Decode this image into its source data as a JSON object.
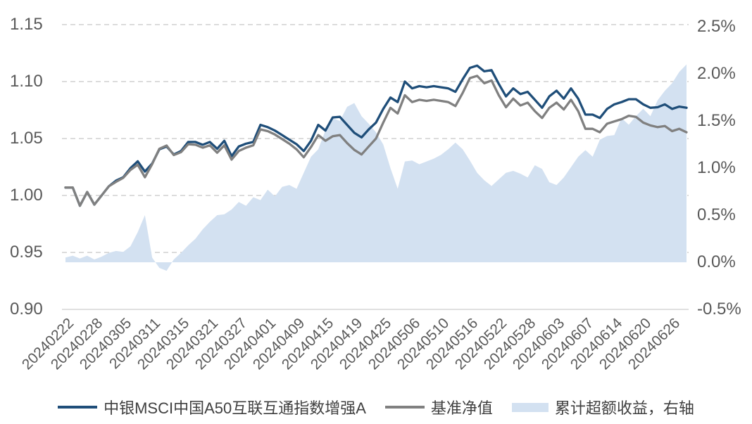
{
  "style": {
    "background": "#ffffff",
    "grid_color": "#c6c6c6",
    "axis_line_color": "#d6d6d6",
    "axis_text_color": "#595959",
    "legend_text_color": "#404040"
  },
  "chart_data": {
    "type": "combo-line-area",
    "title": "",
    "grid": "dashed-horizontal",
    "legend_position": "bottom",
    "x_tick_every": 4,
    "x_tick_labels": [
      "20240222",
      "20240228",
      "20240305",
      "20240311",
      "20240315",
      "20240321",
      "20240327",
      "20240401",
      "20240409",
      "20240415",
      "20240419",
      "20240425",
      "20240506",
      "20240510",
      "20240516",
      "20240522",
      "20240528",
      "20240603",
      "20240607",
      "20240614",
      "20240620",
      "20240626"
    ],
    "left_axis": {
      "min": 0.9,
      "max": 1.15,
      "values": [
        1.15,
        1.1,
        1.05,
        1.0,
        0.95,
        0.9
      ],
      "labels": [
        "1.15",
        "1.10",
        "1.05",
        "1.00",
        "0.95",
        "0.90"
      ]
    },
    "right_axis": {
      "min": -0.5,
      "max": 2.5,
      "values": [
        2.5,
        2.0,
        1.5,
        1.0,
        0.5,
        0.0,
        -0.5
      ],
      "labels": [
        "2.5%",
        "2.0%",
        "1.5%",
        "1.0%",
        "0.5%",
        "0.0%",
        "-0.5%"
      ]
    },
    "series": [
      {
        "name": "中银MSCI中国A50互联互通指数增强A",
        "type": "line",
        "axis": "left",
        "color": "#1f4e79",
        "values": [
          1.007,
          1.007,
          0.991,
          1.003,
          0.992,
          1.0,
          1.008,
          1.013,
          1.016,
          1.024,
          1.03,
          1.021,
          1.028,
          1.0405,
          1.043,
          1.036,
          1.039,
          1.047,
          1.047,
          1.0445,
          1.047,
          1.041,
          1.048,
          1.0345,
          1.043,
          1.0455,
          1.047,
          1.062,
          1.06,
          1.057,
          1.053,
          1.049,
          1.045,
          1.039,
          1.048,
          1.062,
          1.057,
          1.0685,
          1.069,
          1.062,
          1.055,
          1.051,
          1.058,
          1.064,
          1.076,
          1.086,
          1.082,
          1.1,
          1.094,
          1.096,
          1.095,
          1.096,
          1.095,
          1.094,
          1.091,
          1.102,
          1.112,
          1.114,
          1.109,
          1.11,
          1.098,
          1.087,
          1.094,
          1.089,
          1.091,
          1.084,
          1.077,
          1.087,
          1.092,
          1.085,
          1.094,
          1.085,
          1.071,
          1.071,
          1.068,
          1.076,
          1.08,
          1.082,
          1.0845,
          1.0845,
          1.08,
          1.077,
          1.0775,
          1.08,
          1.076,
          1.078,
          1.077
        ]
      },
      {
        "name": "基准净值",
        "type": "line",
        "axis": "left",
        "color": "#808080",
        "values": [
          1.007,
          1.007,
          0.991,
          1.003,
          0.992,
          1.0,
          1.008,
          1.012,
          1.0155,
          1.0225,
          1.027,
          1.016,
          1.0275,
          1.041,
          1.0438,
          1.0355,
          1.038,
          1.045,
          1.0445,
          1.042,
          1.044,
          1.0375,
          1.044,
          1.0315,
          1.039,
          1.042,
          1.044,
          1.058,
          1.0565,
          1.0535,
          1.0495,
          1.0455,
          1.0405,
          1.0335,
          1.0425,
          1.053,
          1.048,
          1.052,
          1.053,
          1.046,
          1.04,
          1.036,
          1.043,
          1.05,
          1.064,
          1.077,
          1.072,
          1.088,
          1.082,
          1.084,
          1.083,
          1.084,
          1.083,
          1.082,
          1.0785,
          1.09,
          1.103,
          1.105,
          1.0985,
          1.101,
          1.088,
          1.0775,
          1.085,
          1.079,
          1.0815,
          1.074,
          1.068,
          1.077,
          1.0815,
          1.0755,
          1.084,
          1.074,
          1.0585,
          1.0585,
          1.0555,
          1.063,
          1.065,
          1.067,
          1.07,
          1.069,
          1.064,
          1.0615,
          1.06,
          1.061,
          1.0565,
          1.0585,
          1.0555
        ]
      },
      {
        "name": "累计超额收益，右轴",
        "type": "area",
        "axis": "right",
        "color": "#d3e1f1",
        "values": [
          0.05,
          0.07,
          0.04,
          0.07,
          0.03,
          0.06,
          0.1,
          0.12,
          0.11,
          0.17,
          0.32,
          0.5,
          0.05,
          -0.06,
          -0.09,
          0.03,
          0.1,
          0.18,
          0.25,
          0.35,
          0.43,
          0.5,
          0.51,
          0.56,
          0.64,
          0.6,
          0.69,
          0.66,
          0.77,
          0.7,
          0.8,
          0.82,
          0.78,
          0.95,
          1.12,
          1.2,
          1.4,
          1.53,
          1.5,
          1.65,
          1.69,
          1.55,
          1.47,
          1.38,
          1.25,
          1.0,
          0.78,
          1.07,
          1.08,
          1.04,
          1.07,
          1.1,
          1.14,
          1.2,
          1.27,
          1.2,
          1.08,
          0.95,
          0.87,
          0.81,
          0.88,
          0.95,
          0.97,
          0.94,
          0.9,
          1.03,
          0.99,
          0.85,
          0.82,
          0.9,
          1.01,
          1.12,
          1.19,
          1.12,
          1.3,
          1.34,
          1.35,
          1.53,
          1.46,
          1.55,
          1.63,
          1.55,
          1.72,
          1.82,
          1.9,
          2.02,
          2.1
        ]
      }
    ]
  }
}
